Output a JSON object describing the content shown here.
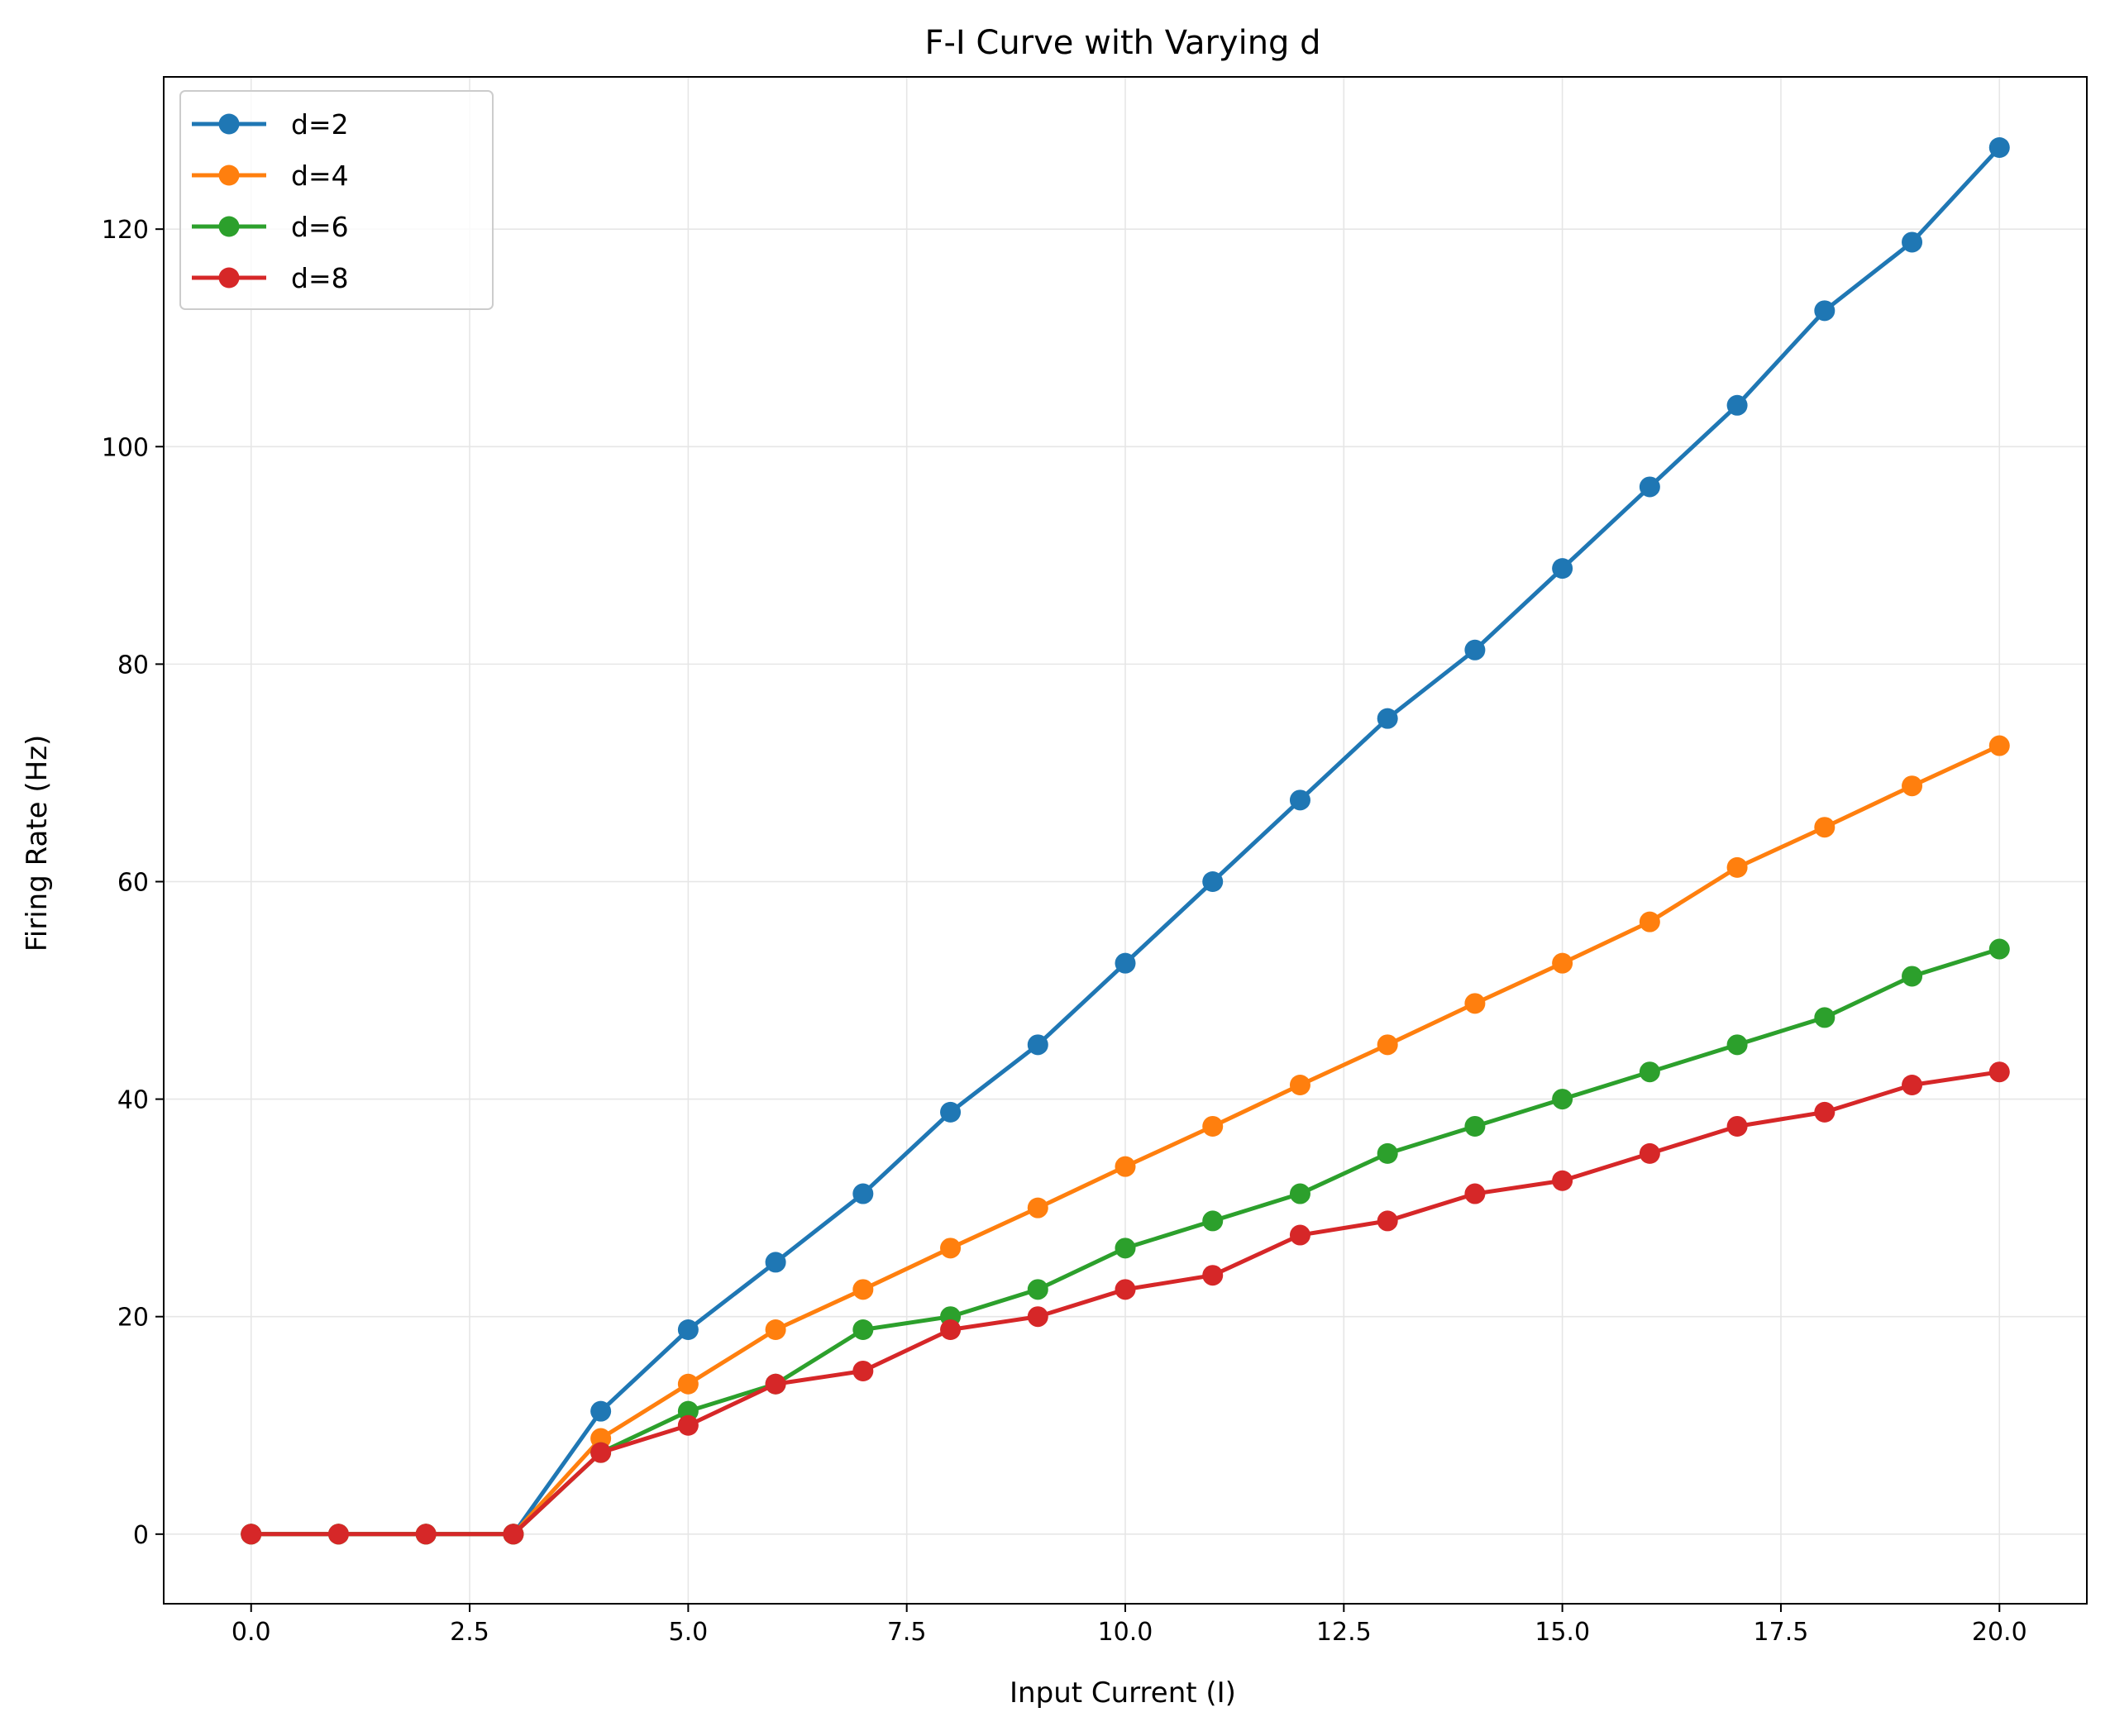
{
  "chart_data": {
    "type": "line",
    "title": "F-I Curve with Varying d",
    "xlabel": "Input Current (I)",
    "ylabel": "Firing Rate (Hz)",
    "xlim": [
      -1,
      21
    ],
    "ylim": [
      -6.4,
      134
    ],
    "xticks": [
      "0.0",
      "2.5",
      "5.0",
      "7.5",
      "10.0",
      "12.5",
      "15.0",
      "17.5",
      "20.0"
    ],
    "yticks": [
      "0",
      "20",
      "40",
      "60",
      "80",
      "100",
      "120"
    ],
    "grid": true,
    "legend_position": "upper-left",
    "x": [
      0,
      1,
      2,
      3,
      4,
      5,
      6,
      7,
      8,
      9,
      10,
      11,
      12,
      13,
      14,
      15,
      16,
      17,
      18,
      19,
      20
    ],
    "series": [
      {
        "name": "d=2",
        "color": "#1f77b4",
        "values": [
          0,
          0,
          0,
          0,
          11.3,
          18.8,
          25.0,
          31.3,
          38.8,
          45.0,
          52.5,
          60.0,
          67.5,
          75.0,
          81.3,
          88.8,
          96.3,
          103.8,
          112.5,
          118.8,
          127.5
        ]
      },
      {
        "name": "d=4",
        "color": "#ff7f0e",
        "values": [
          0,
          0,
          0,
          0,
          8.8,
          13.8,
          18.8,
          22.5,
          26.3,
          30.0,
          33.8,
          37.5,
          41.3,
          45.0,
          48.8,
          52.5,
          56.3,
          61.3,
          65.0,
          68.8,
          72.5
        ]
      },
      {
        "name": "d=6",
        "color": "#2ca02c",
        "values": [
          0,
          0,
          0,
          0,
          7.5,
          11.3,
          13.8,
          18.8,
          20.0,
          22.5,
          26.3,
          28.8,
          31.3,
          35.0,
          37.5,
          40.0,
          42.5,
          45.0,
          47.5,
          51.3,
          53.8
        ]
      },
      {
        "name": "d=8",
        "color": "#d62728",
        "values": [
          0,
          0,
          0,
          0,
          7.5,
          10.0,
          13.8,
          15.0,
          18.8,
          20.0,
          22.5,
          23.8,
          27.5,
          28.8,
          31.3,
          32.5,
          35.0,
          37.5,
          38.8,
          41.3,
          42.5
        ]
      }
    ]
  }
}
